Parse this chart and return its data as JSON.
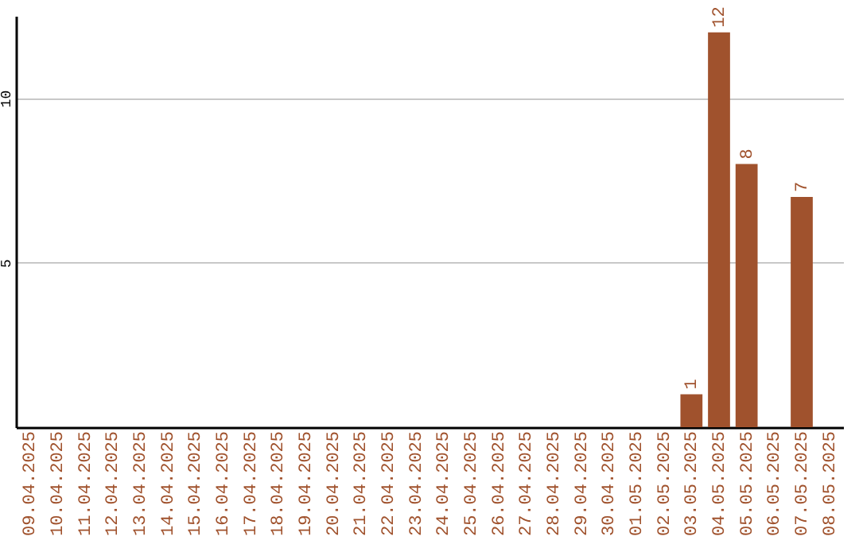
{
  "chart_data": {
    "type": "bar",
    "categories": [
      "09.04.2025",
      "10.04.2025",
      "11.04.2025",
      "12.04.2025",
      "13.04.2025",
      "14.04.2025",
      "15.04.2025",
      "16.04.2025",
      "17.04.2025",
      "18.04.2025",
      "19.04.2025",
      "20.04.2025",
      "21.04.2025",
      "22.04.2025",
      "23.04.2025",
      "24.04.2025",
      "25.04.2025",
      "26.04.2025",
      "27.04.2025",
      "28.04.2025",
      "29.04.2025",
      "30.04.2025",
      "01.05.2025",
      "02.05.2025",
      "03.05.2025",
      "04.05.2025",
      "05.05.2025",
      "06.05.2025",
      "07.05.2025",
      "08.05.2025"
    ],
    "values": [
      0,
      0,
      0,
      0,
      0,
      0,
      0,
      0,
      0,
      0,
      0,
      0,
      0,
      0,
      0,
      0,
      0,
      0,
      0,
      0,
      0,
      0,
      0,
      0,
      1,
      12,
      8,
      0,
      7,
      0
    ],
    "value_labels": [
      null,
      null,
      null,
      null,
      null,
      null,
      null,
      null,
      null,
      null,
      null,
      null,
      null,
      null,
      null,
      null,
      null,
      null,
      null,
      null,
      null,
      null,
      null,
      null,
      "1",
      "12",
      "8",
      null,
      "7",
      null
    ],
    "color": "#a0522d",
    "ylim": [
      0,
      12.5
    ],
    "yticks": [
      5,
      10
    ],
    "grid": "y"
  }
}
